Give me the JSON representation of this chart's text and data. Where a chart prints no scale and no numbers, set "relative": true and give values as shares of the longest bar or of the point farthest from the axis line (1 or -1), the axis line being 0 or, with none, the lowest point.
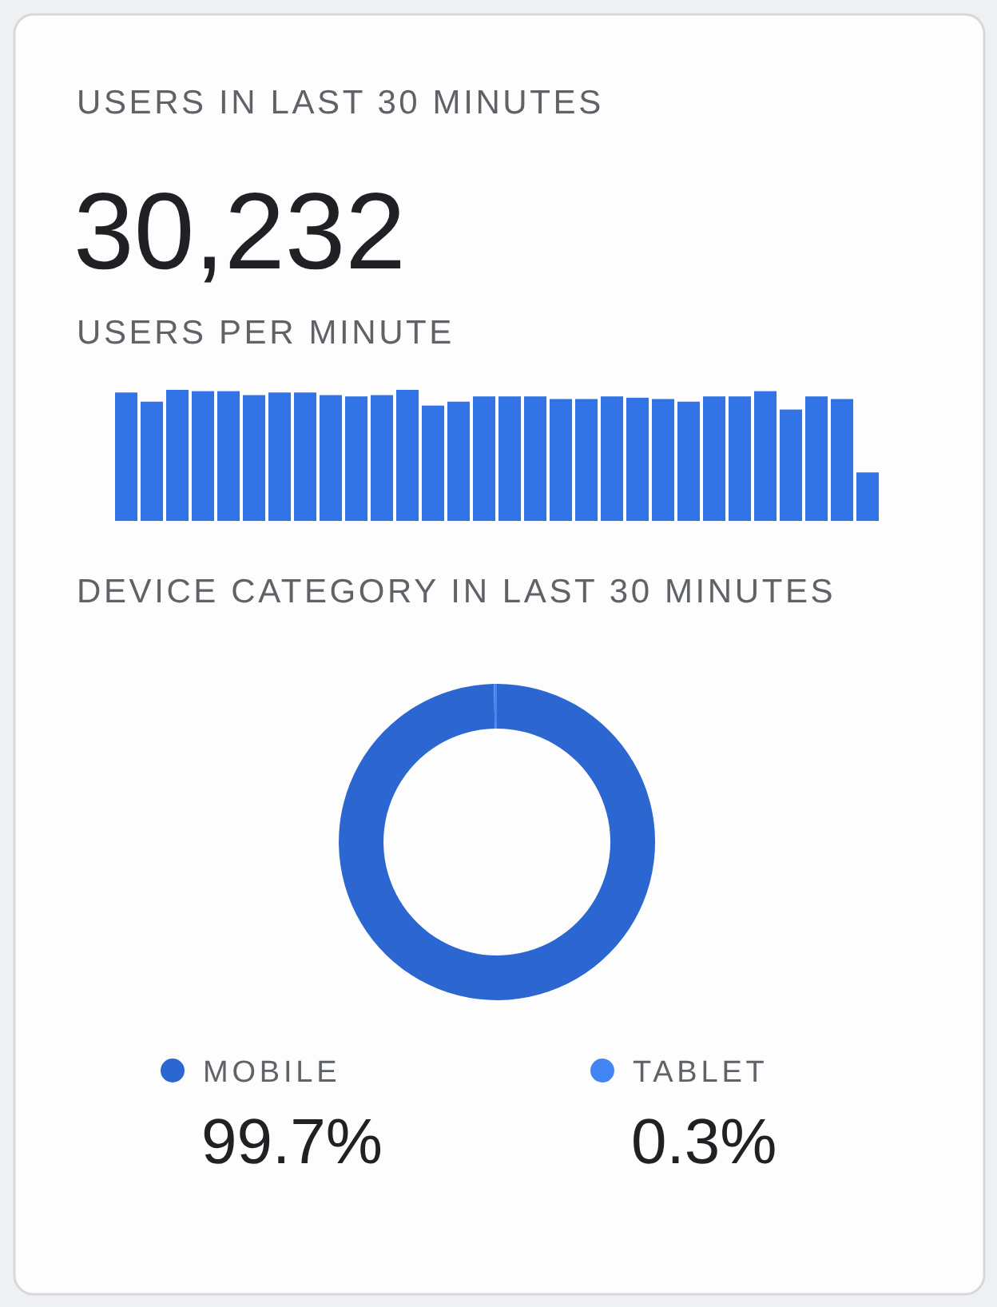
{
  "chart_data": [
    {
      "type": "other",
      "title": "USERS IN LAST 30 MINUTES",
      "annotations": [
        "30,232"
      ]
    },
    {
      "type": "bar",
      "title": "USERS PER MINUTE",
      "relative": true,
      "color": "#3273e6",
      "categories": [
        null,
        null,
        null,
        null,
        null,
        null,
        null,
        null,
        null,
        null,
        null,
        null,
        null,
        null,
        null,
        null,
        null,
        null,
        null,
        null,
        null,
        null,
        null,
        null,
        null,
        null,
        null,
        null,
        null,
        null
      ],
      "values": [
        0.98,
        0.91,
        1.0,
        0.99,
        0.99,
        0.96,
        0.98,
        0.98,
        0.96,
        0.95,
        0.96,
        1.0,
        0.88,
        0.91,
        0.95,
        0.95,
        0.95,
        0.93,
        0.93,
        0.95,
        0.94,
        0.93,
        0.91,
        0.95,
        0.95,
        0.99,
        0.85,
        0.95,
        0.93,
        0.37
      ]
    },
    {
      "type": "donut",
      "title": "DEVICE CATEGORY IN LAST 30 MINUTES",
      "categories": [
        "MOBILE",
        "TABLET"
      ],
      "values": [
        99.7,
        0.3
      ],
      "colors": [
        "#2b66d1",
        "#4285f4"
      ],
      "value_labels": [
        "99.7%",
        "0.3%"
      ],
      "legend": "bottom"
    }
  ]
}
